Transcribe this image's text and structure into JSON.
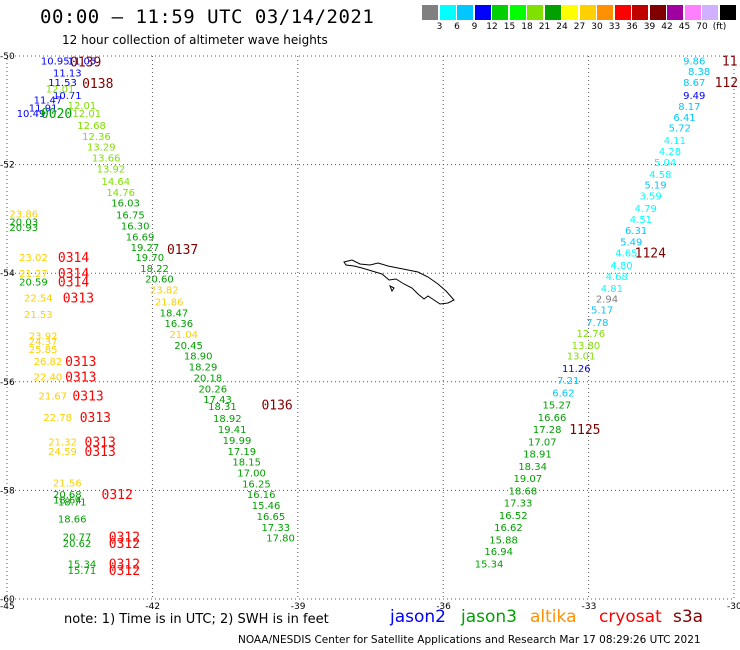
{
  "title": "00:00 – 11:59 UTC 03/14/2021",
  "subtitle": "12 hour collection of altimeter wave heights",
  "legend": {
    "colors": [
      "#808080",
      "#00ffff",
      "#00c8ff",
      "#0000ff",
      "#00d000",
      "#00ff00",
      "#80e000",
      "#00a000",
      "#ffff00",
      "#ffd000",
      "#ff9000",
      "#ff0000",
      "#c00000",
      "#800000",
      "#a000a0",
      "#ff80ff",
      "#d0b0ff",
      "#000000"
    ],
    "labels": [
      "3",
      "6",
      "9",
      "12",
      "15",
      "18",
      "21",
      "24",
      "27",
      "30",
      "33",
      "36",
      "39",
      "42",
      "45",
      "70",
      "(ft)"
    ]
  },
  "axes": {
    "lat_labels": [
      "-50",
      "-52",
      "-54",
      "-56",
      "-58",
      "-60"
    ],
    "lon_labels": [
      "-45",
      "-42",
      "-39",
      "-36",
      "-33",
      "-30"
    ]
  },
  "swh": [
    {
      "v": "10.95",
      "lon": -44.3,
      "lat": -50.08,
      "c": "#0000ff"
    },
    {
      "v": "11.05",
      "lon": -43.75,
      "lat": -50.08,
      "c": "#0000ff"
    },
    {
      "v": "11.13",
      "lon": -44.05,
      "lat": -50.3,
      "c": "#0000ff"
    },
    {
      "v": "11.53",
      "lon": -44.15,
      "lat": -50.48,
      "c": "#0000ff"
    },
    {
      "v": "11.47",
      "lon": -44.45,
      "lat": -50.8,
      "c": "#0000ff"
    },
    {
      "v": "11.91",
      "lon": -44.55,
      "lat": -50.95,
      "c": "#0000ff"
    },
    {
      "v": "10.49",
      "lon": -44.8,
      "lat": -51.05,
      "c": "#0000ff"
    },
    {
      "v": "10.71",
      "lon": -44.05,
      "lat": -50.72,
      "c": "#0000ff"
    },
    {
      "v": "12.01",
      "lon": -43.75,
      "lat": -50.9,
      "c": "#80e000"
    },
    {
      "v": "12.01",
      "lon": -44.2,
      "lat": -50.6,
      "c": "#80e000"
    },
    {
      "v": "12.01",
      "lon": -43.65,
      "lat": -51.05,
      "c": "#80e000"
    },
    {
      "v": "12.68",
      "lon": -43.55,
      "lat": -51.27,
      "c": "#80e000"
    },
    {
      "v": "12.36",
      "lon": -43.45,
      "lat": -51.47,
      "c": "#80e000"
    },
    {
      "v": "13.29",
      "lon": -43.35,
      "lat": -51.67,
      "c": "#80e000"
    },
    {
      "v": "13.66",
      "lon": -43.25,
      "lat": -51.87,
      "c": "#80e000"
    },
    {
      "v": "13.92",
      "lon": -43.15,
      "lat": -52.07,
      "c": "#80e000"
    },
    {
      "v": "14.64",
      "lon": -43.05,
      "lat": -52.3,
      "c": "#80e000"
    },
    {
      "v": "14.76",
      "lon": -42.95,
      "lat": -52.5,
      "c": "#80e000"
    },
    {
      "v": "16.03",
      "lon": -42.85,
      "lat": -52.7,
      "c": "#00a000"
    },
    {
      "v": "16.75",
      "lon": -42.75,
      "lat": -52.92,
      "c": "#00a000"
    },
    {
      "v": "16.30",
      "lon": -42.65,
      "lat": -53.12,
      "c": "#00a000"
    },
    {
      "v": "16.69",
      "lon": -42.55,
      "lat": -53.32,
      "c": "#00a000"
    },
    {
      "v": "19.27",
      "lon": -42.45,
      "lat": -53.52,
      "c": "#00a000"
    },
    {
      "v": "19.70",
      "lon": -42.35,
      "lat": -53.7,
      "c": "#00a000"
    },
    {
      "v": "18.22",
      "lon": -42.25,
      "lat": -53.9,
      "c": "#00a000"
    },
    {
      "v": "20.60",
      "lon": -42.15,
      "lat": -54.1,
      "c": "#00a000"
    },
    {
      "v": "23.82",
      "lon": -42.05,
      "lat": -54.3,
      "c": "#ffd000"
    },
    {
      "v": "21.86",
      "lon": -41.95,
      "lat": -54.52,
      "c": "#ffd000"
    },
    {
      "v": "18.47",
      "lon": -41.85,
      "lat": -54.72,
      "c": "#00a000"
    },
    {
      "v": "16.36",
      "lon": -41.75,
      "lat": -54.92,
      "c": "#00a000"
    },
    {
      "v": "21.04",
      "lon": -41.65,
      "lat": -55.12,
      "c": "#ffd000"
    },
    {
      "v": "20.45",
      "lon": -41.55,
      "lat": -55.32,
      "c": "#00a000"
    },
    {
      "v": "18.90",
      "lon": -41.35,
      "lat": -55.52,
      "c": "#00a000"
    },
    {
      "v": "18.29",
      "lon": -41.25,
      "lat": -55.72,
      "c": "#00a000"
    },
    {
      "v": "20.18",
      "lon": -41.15,
      "lat": -55.92,
      "c": "#00a000"
    },
    {
      "v": "20.26",
      "lon": -41.05,
      "lat": -56.12,
      "c": "#00a000"
    },
    {
      "v": "17.43",
      "lon": -40.95,
      "lat": -56.32,
      "c": "#00a000"
    },
    {
      "v": "18.31",
      "lon": -40.85,
      "lat": -56.45,
      "c": "#00a000"
    },
    {
      "v": "18.92",
      "lon": -40.75,
      "lat": -56.67,
      "c": "#00a000"
    },
    {
      "v": "19.41",
      "lon": -40.65,
      "lat": -56.87,
      "c": "#00a000"
    },
    {
      "v": "19.99",
      "lon": -40.55,
      "lat": -57.07,
      "c": "#00a000"
    },
    {
      "v": "17.19",
      "lon": -40.45,
      "lat": -57.27,
      "c": "#00a000"
    },
    {
      "v": "18.15",
      "lon": -40.35,
      "lat": -57.47,
      "c": "#00a000"
    },
    {
      "v": "17.00",
      "lon": -40.25,
      "lat": -57.67,
      "c": "#00a000"
    },
    {
      "v": "16.25",
      "lon": -40.15,
      "lat": -57.87,
      "c": "#00a000"
    },
    {
      "v": "16.16",
      "lon": -40.05,
      "lat": -58.07,
      "c": "#00a000"
    },
    {
      "v": "15.46",
      "lon": -39.95,
      "lat": -58.27,
      "c": "#00a000"
    },
    {
      "v": "16.65",
      "lon": -39.85,
      "lat": -58.47,
      "c": "#00a000"
    },
    {
      "v": "17.33",
      "lon": -39.75,
      "lat": -58.67,
      "c": "#00a000"
    },
    {
      "v": "17.80",
      "lon": -39.65,
      "lat": -58.87,
      "c": "#00a000"
    },
    {
      "v": "23.86",
      "lon": -44.95,
      "lat": -52.9,
      "c": "#ffd000"
    },
    {
      "v": "20.03",
      "lon": -44.95,
      "lat": -53.05,
      "c": "#00a000"
    },
    {
      "v": "20.93",
      "lon": -44.95,
      "lat": -53.15,
      "c": "#00a000"
    },
    {
      "v": "23.02",
      "lon": -44.75,
      "lat": -53.7,
      "c": "#ffd000"
    },
    {
      "v": "21.27",
      "lon": -44.75,
      "lat": -54.0,
      "c": "#ffd000"
    },
    {
      "v": "20.59",
      "lon": -44.75,
      "lat": -54.15,
      "c": "#00a000"
    },
    {
      "v": "22.54",
      "lon": -44.65,
      "lat": -54.45,
      "c": "#ffd000"
    },
    {
      "v": "21.53",
      "lon": -44.65,
      "lat": -54.75,
      "c": "#ffd000"
    },
    {
      "v": "23.92",
      "lon": -44.55,
      "lat": -55.15,
      "c": "#ffd000"
    },
    {
      "v": "24.37",
      "lon": -44.55,
      "lat": -55.25,
      "c": "#ffd000"
    },
    {
      "v": "25.85",
      "lon": -44.55,
      "lat": -55.4,
      "c": "#ffd000"
    },
    {
      "v": "26.82",
      "lon": -44.45,
      "lat": -55.62,
      "c": "#ffd000"
    },
    {
      "v": "22.40",
      "lon": -44.45,
      "lat": -55.9,
      "c": "#ffd000"
    },
    {
      "v": "21.67",
      "lon": -44.35,
      "lat": -56.25,
      "c": "#ffd000"
    },
    {
      "v": "22.78",
      "lon": -44.25,
      "lat": -56.65,
      "c": "#ffd000"
    },
    {
      "v": "21.32",
      "lon": -44.15,
      "lat": -57.1,
      "c": "#ffd000"
    },
    {
      "v": "24.59",
      "lon": -44.15,
      "lat": -57.27,
      "c": "#ffd000"
    },
    {
      "v": "21.56",
      "lon": -44.05,
      "lat": -57.85,
      "c": "#ffd000"
    },
    {
      "v": "20.68",
      "lon": -44.05,
      "lat": -58.07,
      "c": "#00a000"
    },
    {
      "v": "18.64",
      "lon": -44.05,
      "lat": -58.17,
      "c": "#00a000"
    },
    {
      "v": "18.71",
      "lon": -43.95,
      "lat": -58.2,
      "c": "#00a000"
    },
    {
      "v": "18.66",
      "lon": -43.95,
      "lat": -58.52,
      "c": "#00a000"
    },
    {
      "v": "20.77",
      "lon": -43.85,
      "lat": -58.85,
      "c": "#00a000"
    },
    {
      "v": "20.62",
      "lon": -43.85,
      "lat": -58.97,
      "c": "#00a000"
    },
    {
      "v": "15.34",
      "lon": -43.75,
      "lat": -59.35,
      "c": "#00a000"
    },
    {
      "v": "15.71",
      "lon": -43.75,
      "lat": -59.47,
      "c": "#00a000"
    },
    {
      "v": "9.86",
      "lon": -31.05,
      "lat": -50.08,
      "c": "#00c8ff"
    },
    {
      "v": "8.38",
      "lon": -30.95,
      "lat": -50.28,
      "c": "#00c8ff"
    },
    {
      "v": "8.67",
      "lon": -31.05,
      "lat": -50.48,
      "c": "#00c8ff"
    },
    {
      "v": "9.49",
      "lon": -31.05,
      "lat": -50.72,
      "c": "#0000ff"
    },
    {
      "v": "8.17",
      "lon": -31.15,
      "lat": -50.92,
      "c": "#00c8ff"
    },
    {
      "v": "6.41",
      "lon": -31.25,
      "lat": -51.12,
      "c": "#00c8ff"
    },
    {
      "v": "5.72",
      "lon": -31.35,
      "lat": -51.32,
      "c": "#00c8ff"
    },
    {
      "v": "4.11",
      "lon": -31.45,
      "lat": -51.55,
      "c": "#00ffff"
    },
    {
      "v": "4.28",
      "lon": -31.55,
      "lat": -51.75,
      "c": "#00ffff"
    },
    {
      "v": "5.04",
      "lon": -31.65,
      "lat": -51.95,
      "c": "#00ffff"
    },
    {
      "v": "4.58",
      "lon": -31.75,
      "lat": -52.17,
      "c": "#00ffff"
    },
    {
      "v": "5.19",
      "lon": -31.85,
      "lat": -52.37,
      "c": "#00c8ff"
    },
    {
      "v": "3.59",
      "lon": -31.95,
      "lat": -52.57,
      "c": "#00ffff"
    },
    {
      "v": "4.79",
      "lon": -32.05,
      "lat": -52.8,
      "c": "#00ffff"
    },
    {
      "v": "4.51",
      "lon": -32.15,
      "lat": -53.0,
      "c": "#00ffff"
    },
    {
      "v": "6.31",
      "lon": -32.25,
      "lat": -53.2,
      "c": "#00c8ff"
    },
    {
      "v": "5.49",
      "lon": -32.35,
      "lat": -53.42,
      "c": "#00c8ff"
    },
    {
      "v": "4.65",
      "lon": -32.45,
      "lat": -53.62,
      "c": "#00ffff"
    },
    {
      "v": "4.80",
      "lon": -32.55,
      "lat": -53.85,
      "c": "#00ffff"
    },
    {
      "v": "4.68",
      "lon": -32.65,
      "lat": -54.05,
      "c": "#00ffff"
    },
    {
      "v": "4.81",
      "lon": -32.75,
      "lat": -54.27,
      "c": "#00ffff"
    },
    {
      "v": "2.94",
      "lon": -32.85,
      "lat": -54.47,
      "c": "#808080"
    },
    {
      "v": "5.17",
      "lon": -32.95,
      "lat": -54.67,
      "c": "#00c8ff"
    },
    {
      "v": "7.78",
      "lon": -33.05,
      "lat": -54.9,
      "c": "#00c8ff"
    },
    {
      "v": "12.76",
      "lon": -33.25,
      "lat": -55.1,
      "c": "#80e000"
    },
    {
      "v": "13.80",
      "lon": -33.35,
      "lat": -55.32,
      "c": "#80e000"
    },
    {
      "v": "13.01",
      "lon": -33.45,
      "lat": -55.52,
      "c": "#80e000"
    },
    {
      "v": "11.26",
      "lon": -33.55,
      "lat": -55.75,
      "c": "#0000ff"
    },
    {
      "v": "7.21",
      "lon": -33.65,
      "lat": -55.97,
      "c": "#00c8ff"
    },
    {
      "v": "6.62",
      "lon": -33.75,
      "lat": -56.2,
      "c": "#00c8ff"
    },
    {
      "v": "15.27",
      "lon": -33.95,
      "lat": -56.42,
      "c": "#00a000"
    },
    {
      "v": "16.66",
      "lon": -34.05,
      "lat": -56.65,
      "c": "#00a000"
    },
    {
      "v": "17.28",
      "lon": -34.15,
      "lat": -56.87,
      "c": "#00a000"
    },
    {
      "v": "17.07",
      "lon": -34.25,
      "lat": -57.1,
      "c": "#00a000"
    },
    {
      "v": "18.91",
      "lon": -34.35,
      "lat": -57.32,
      "c": "#00a000"
    },
    {
      "v": "18.34",
      "lon": -34.45,
      "lat": -57.55,
      "c": "#00a000"
    },
    {
      "v": "19.07",
      "lon": -34.55,
      "lat": -57.77,
      "c": "#00a000"
    },
    {
      "v": "18.68",
      "lon": -34.65,
      "lat": -58.0,
      "c": "#00a000"
    },
    {
      "v": "17.33",
      "lon": -34.75,
      "lat": -58.22,
      "c": "#00a000"
    },
    {
      "v": "16.52",
      "lon": -34.85,
      "lat": -58.45,
      "c": "#00a000"
    },
    {
      "v": "16.62",
      "lon": -34.95,
      "lat": -58.67,
      "c": "#00a000"
    },
    {
      "v": "15.88",
      "lon": -35.05,
      "lat": -58.9,
      "c": "#00a000"
    },
    {
      "v": "16.94",
      "lon": -35.15,
      "lat": -59.12,
      "c": "#00a000"
    },
    {
      "v": "15.34",
      "lon": -35.35,
      "lat": -59.35,
      "c": "#00a000"
    }
  ],
  "passes": [
    {
      "v": "0139",
      "lon": -43.7,
      "lat": -50.1,
      "c": "#800000"
    },
    {
      "v": "0138",
      "lon": -43.45,
      "lat": -50.5,
      "c": "#800000"
    },
    {
      "v": "0020",
      "lon": -44.3,
      "lat": -51.05,
      "c": "#00a000"
    },
    {
      "v": "0137",
      "lon": -41.7,
      "lat": -53.55,
      "c": "#800000"
    },
    {
      "v": "0314",
      "lon": -43.95,
      "lat": -53.7,
      "c": "#ff0000"
    },
    {
      "v": "0314",
      "lon": -43.95,
      "lat": -54.0,
      "c": "#ff0000"
    },
    {
      "v": "0314",
      "lon": -43.95,
      "lat": -54.15,
      "c": "#ff0000"
    },
    {
      "v": "0313",
      "lon": -43.85,
      "lat": -54.45,
      "c": "#ff0000"
    },
    {
      "v": "0313",
      "lon": -43.8,
      "lat": -55.62,
      "c": "#ff0000"
    },
    {
      "v": "0313",
      "lon": -43.8,
      "lat": -55.9,
      "c": "#ff0000"
    },
    {
      "v": "0313",
      "lon": -43.65,
      "lat": -56.25,
      "c": "#ff0000"
    },
    {
      "v": "0313",
      "lon": -43.5,
      "lat": -56.65,
      "c": "#ff0000"
    },
    {
      "v": "0313",
      "lon": -43.4,
      "lat": -57.1,
      "c": "#ff0000"
    },
    {
      "v": "0313",
      "lon": -43.4,
      "lat": -57.27,
      "c": "#ff0000"
    },
    {
      "v": "0312",
      "lon": -43.05,
      "lat": -58.07,
      "c": "#ff0000"
    },
    {
      "v": "0312",
      "lon": -42.9,
      "lat": -58.85,
      "c": "#ff0000"
    },
    {
      "v": "0312",
      "lon": -42.9,
      "lat": -58.97,
      "c": "#ff0000"
    },
    {
      "v": "0312",
      "lon": -42.9,
      "lat": -59.35,
      "c": "#ff0000"
    },
    {
      "v": "0312",
      "lon": -42.9,
      "lat": -59.47,
      "c": "#ff0000"
    },
    {
      "v": "0136",
      "lon": -39.75,
      "lat": -56.42,
      "c": "#800000"
    },
    {
      "v": "1124",
      "lon": -32.05,
      "lat": -53.62,
      "c": "#800000"
    },
    {
      "v": "1125",
      "lon": -33.4,
      "lat": -56.87,
      "c": "#800000"
    },
    {
      "v": "11",
      "lon": -30.25,
      "lat": -50.08,
      "c": "#800000"
    },
    {
      "v": "112.",
      "lon": -30.4,
      "lat": -50.48,
      "c": "#800000"
    }
  ],
  "note": "note: 1) Time is in UTC; 2) SWH is in feet",
  "satellites": [
    {
      "name": "jason2",
      "color": "#0000ff"
    },
    {
      "name": "jason3",
      "color": "#00a000"
    },
    {
      "name": "altika",
      "color": "#ff9000"
    },
    {
      "name": "cryosat",
      "color": "#ff0000"
    },
    {
      "name": "s3a",
      "color": "#800000"
    }
  ],
  "footer": "NOAA/NESDIS Center for Satellite Applications and Research    Mar 17 08:29:26 UTC 2021"
}
